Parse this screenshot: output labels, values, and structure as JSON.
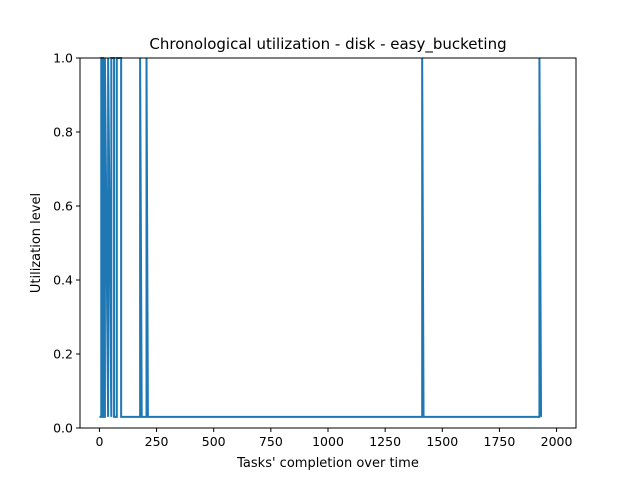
{
  "chart_data": {
    "type": "line",
    "title": "Chronological utilization - disk - easy_bucketing",
    "xlabel": "Tasks' completion over time",
    "ylabel": "Utilization level",
    "xlim": [
      -85,
      2085
    ],
    "ylim": [
      0,
      1
    ],
    "xticks": [
      0,
      250,
      500,
      750,
      1000,
      1250,
      1500,
      1750,
      2000
    ],
    "yticks": [
      0.0,
      0.2,
      0.4,
      0.6,
      0.8,
      1.0
    ],
    "xtick_labels": [
      "0",
      "250",
      "500",
      "750",
      "1000",
      "1250",
      "1500",
      "1750",
      "2000"
    ],
    "ytick_labels": [
      "0.0",
      "0.2",
      "0.4",
      "0.6",
      "0.8",
      "1.0"
    ],
    "grid": false,
    "legend": "none",
    "series": [
      {
        "color": "#1f77b4",
        "x": [
          0,
          8,
          8,
          16,
          16,
          24,
          24,
          38,
          38,
          52,
          52,
          64,
          64,
          76,
          76,
          95,
          95,
          100,
          178,
          178,
          185,
          206,
          206,
          212,
          1412,
          1412,
          1418,
          1925,
          1925,
          1932
        ],
        "y": [
          0.03,
          0.03,
          1.0,
          1.0,
          0.03,
          0.03,
          1.0,
          0.03,
          1.0,
          0.03,
          1.0,
          1.0,
          0.03,
          0.03,
          1.0,
          1.0,
          0.03,
          0.03,
          0.03,
          1.0,
          0.03,
          0.03,
          1.0,
          0.03,
          0.03,
          1.0,
          0.03,
          0.03,
          1.0,
          0.03
        ]
      }
    ]
  }
}
